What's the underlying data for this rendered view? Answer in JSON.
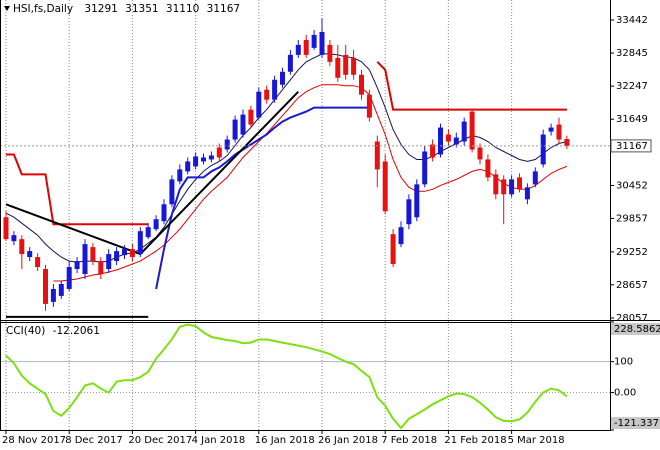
{
  "chart_data": {
    "type": "candlestick",
    "symbol": "HSI,fs,Daily",
    "categories": [
      "28 Nov 2017",
      null,
      null,
      null,
      null,
      null,
      null,
      null,
      "8 Dec 2017",
      null,
      null,
      null,
      null,
      null,
      null,
      null,
      "20 Dec 2017",
      null,
      null,
      null,
      null,
      null,
      null,
      null,
      "4 Jan 2018",
      null,
      null,
      null,
      null,
      null,
      null,
      null,
      "16 Jan 2018",
      null,
      null,
      null,
      null,
      null,
      null,
      null,
      "26 Jan 2018",
      null,
      null,
      null,
      null,
      null,
      null,
      null,
      "7 Feb 2018",
      null,
      null,
      null,
      null,
      null,
      null,
      null,
      "21 Feb 2018",
      null,
      null,
      null,
      null,
      null,
      null,
      null,
      "5 Mar 2018",
      null,
      null,
      null,
      null,
      null,
      null,
      null
    ],
    "ohlc": [
      [
        29878,
        29986,
        29446,
        29482
      ],
      [
        29446,
        29626,
        29374,
        29554
      ],
      [
        29482,
        29554,
        28942,
        29212
      ],
      [
        29158,
        29338,
        29086,
        29266
      ],
      [
        29158,
        29230,
        28906,
        28978
      ],
      [
        28942,
        29014,
        28186,
        28312
      ],
      [
        28348,
        28672,
        28258,
        28582
      ],
      [
        28456,
        28726,
        28402,
        28672
      ],
      [
        28582,
        29086,
        28546,
        28978
      ],
      [
        28942,
        29158,
        28870,
        29086
      ],
      [
        28852,
        29482,
        28762,
        29392
      ],
      [
        29338,
        29410,
        29014,
        29086
      ],
      [
        29086,
        29158,
        28762,
        28852
      ],
      [
        28942,
        29302,
        28870,
        29212
      ],
      [
        29086,
        29338,
        29014,
        29266
      ],
      [
        29194,
        29374,
        29122,
        29302
      ],
      [
        29302,
        29392,
        29086,
        29158
      ],
      [
        29212,
        29698,
        29158,
        29626
      ],
      [
        29518,
        29770,
        29482,
        29698
      ],
      [
        29662,
        29914,
        29626,
        29842
      ],
      [
        29806,
        30202,
        29752,
        30112
      ],
      [
        30112,
        30634,
        30058,
        30562
      ],
      [
        30526,
        30832,
        30472,
        30742
      ],
      [
        30706,
        30958,
        30652,
        30886
      ],
      [
        30796,
        31048,
        30742,
        30976
      ],
      [
        30886,
        31030,
        30832,
        30958
      ],
      [
        30922,
        31066,
        30868,
        30994
      ],
      [
        31138,
        31210,
        30886,
        30958
      ],
      [
        31102,
        31354,
        31048,
        31282
      ],
      [
        31282,
        31714,
        31228,
        31642
      ],
      [
        31372,
        31822,
        31318,
        31732
      ],
      [
        31822,
        31894,
        31498,
        31552
      ],
      [
        31678,
        32218,
        31642,
        32146
      ],
      [
        32182,
        32254,
        31930,
        32002
      ],
      [
        32002,
        32434,
        31948,
        32362
      ],
      [
        32272,
        32578,
        32218,
        32506
      ],
      [
        32506,
        32902,
        32452,
        32812
      ],
      [
        32812,
        33082,
        32758,
        32992
      ],
      [
        33082,
        33172,
        32758,
        32812
      ],
      [
        32938,
        33262,
        32902,
        33172
      ],
      [
        32812,
        33478,
        32758,
        33226
      ],
      [
        32992,
        33082,
        32614,
        32686
      ],
      [
        32758,
        32992,
        32326,
        32398
      ],
      [
        32812,
        32992,
        32362,
        32452
      ],
      [
        32758,
        32902,
        32362,
        32452
      ],
      [
        32452,
        32542,
        32002,
        32092
      ],
      [
        32092,
        32182,
        31606,
        31678
      ],
      [
        31246,
        31354,
        30418,
        30742
      ],
      [
        30886,
        31012,
        29932,
        29986
      ],
      [
        29572,
        29662,
        28978,
        29032
      ],
      [
        29392,
        29806,
        29338,
        29698
      ],
      [
        29752,
        30292,
        29662,
        30202
      ],
      [
        29878,
        30562,
        29806,
        30472
      ],
      [
        30472,
        31174,
        30418,
        31066
      ],
      [
        31192,
        31282,
        30886,
        30958
      ],
      [
        31012,
        31570,
        30958,
        31498
      ],
      [
        31372,
        31462,
        31174,
        31246
      ],
      [
        31192,
        31408,
        31138,
        31318
      ],
      [
        31246,
        31678,
        31174,
        31606
      ],
      [
        31786,
        31822,
        31048,
        31102
      ],
      [
        31138,
        31210,
        30832,
        30922
      ],
      [
        30922,
        31012,
        30526,
        30598
      ],
      [
        30652,
        30742,
        30202,
        30292
      ],
      [
        30562,
        30634,
        29752,
        30292
      ],
      [
        30292,
        30634,
        30238,
        30562
      ],
      [
        30598,
        30670,
        30328,
        30382
      ],
      [
        30202,
        30490,
        30112,
        30418
      ],
      [
        30472,
        30778,
        30418,
        30706
      ],
      [
        30832,
        31462,
        30778,
        31372
      ],
      [
        31426,
        31570,
        31354,
        31498
      ],
      [
        31552,
        31678,
        31192,
        31282
      ],
      [
        31291,
        31351,
        31110,
        31167
      ]
    ],
    "up_color": "#1717d6",
    "down_color": "#e81010",
    "overlays": [
      {
        "color": "#14145a",
        "values": [
          29950,
          29878,
          29770,
          29662,
          29554,
          29392,
          29266,
          29158,
          29086,
          29068,
          29086,
          29086,
          29068,
          29086,
          29158,
          29212,
          29230,
          29302,
          29410,
          29518,
          29698,
          29932,
          30166,
          30382,
          30562,
          30706,
          30814,
          30886,
          30994,
          31174,
          31354,
          31498,
          31678,
          31822,
          32002,
          32182,
          32362,
          32542,
          32686,
          32758,
          32830,
          32830,
          32812,
          32776,
          32758,
          32686,
          32542,
          32218,
          31858,
          31462,
          31192,
          31012,
          30922,
          30922,
          30976,
          31066,
          31138,
          31210,
          31282,
          31354,
          31318,
          31246,
          31138,
          31066,
          30994,
          30922,
          30886,
          30922,
          31030,
          31138,
          31210,
          31246
        ]
      },
      {
        "color": "#e00000",
        "values": [
          null,
          null,
          null,
          null,
          null,
          null,
          28726,
          28726,
          28744,
          28762,
          28798,
          28834,
          28852,
          28888,
          28924,
          28978,
          29032,
          29086,
          29176,
          29266,
          29374,
          29518,
          29662,
          29842,
          30022,
          30202,
          30346,
          30472,
          30598,
          30778,
          30958,
          31102,
          31246,
          31390,
          31552,
          31714,
          31876,
          32038,
          32146,
          32218,
          32272,
          32272,
          32272,
          32254,
          32254,
          32218,
          32092,
          31732,
          31372,
          30922,
          30598,
          30418,
          30346,
          30346,
          30382,
          30454,
          30508,
          30562,
          30634,
          30706,
          30742,
          30706,
          30598,
          30490,
          30418,
          30382,
          30382,
          30454,
          30562,
          30670,
          30742,
          30796
        ]
      },
      {
        "color": "#e00000",
        "values": [
          31012,
          31012,
          30652,
          30652,
          30652,
          30652,
          29752,
          29752,
          29752,
          29752,
          29752,
          29752,
          29752,
          29752,
          29752,
          29752,
          29752,
          29752,
          29752,
          null,
          null,
          null,
          null,
          null,
          null,
          null,
          null,
          null,
          null,
          null,
          null,
          null,
          null,
          null,
          null,
          null,
          null,
          null,
          null,
          null,
          null,
          null,
          null,
          null,
          null,
          null,
          null,
          32686,
          32542,
          31822,
          31822,
          31822,
          31822,
          31822,
          31822,
          31822,
          31822,
          31822,
          31822,
          31822,
          31822,
          31822,
          31822,
          31822,
          31822,
          31822,
          31822,
          31822,
          31822,
          31822,
          31822,
          31822
        ]
      },
      {
        "color": "#1a1ad0",
        "values": [
          null,
          null,
          null,
          null,
          null,
          null,
          null,
          null,
          null,
          null,
          null,
          null,
          null,
          null,
          null,
          null,
          null,
          null,
          null,
          28582,
          29302,
          29932,
          30382,
          30598,
          30598,
          30598,
          30706,
          30778,
          30886,
          31012,
          31102,
          31192,
          31282,
          31372,
          31498,
          31606,
          31678,
          31732,
          31786,
          31858,
          31858,
          31858,
          31858,
          31858,
          31858,
          31858,
          31858,
          null,
          null,
          null,
          null,
          null,
          null,
          null,
          null,
          null,
          null,
          null,
          null,
          null,
          null,
          null,
          null,
          null,
          null,
          null,
          null,
          null,
          null,
          null,
          null,
          null
        ]
      }
    ],
    "trendlines": [
      {
        "color": "#000000",
        "x": [
          0,
          17
        ],
        "y": [
          30112,
          29212
        ]
      },
      {
        "color": "#000000",
        "x": [
          17,
          37
        ],
        "y": [
          29212,
          32146
        ]
      },
      {
        "color": "#000000",
        "x": [
          0,
          18
        ],
        "y": [
          28078,
          28078
        ]
      }
    ],
    "ylim": [
      28021,
      33767
    ],
    "yticks": [
      33442,
      32845,
      32247,
      31649,
      30452,
      29857,
      29252,
      28657,
      28057
    ],
    "grid": true,
    "indicator": {
      "title": "CCI(40)",
      "color": "#7ee012",
      "values": [
        120,
        95,
        55,
        30,
        12,
        -5,
        -60,
        -75,
        -50,
        -15,
        23,
        30,
        13,
        0,
        35,
        40,
        40,
        50,
        67,
        110,
        140,
        173,
        213,
        220,
        215,
        195,
        180,
        175,
        170,
        167,
        160,
        162,
        172,
        172,
        167,
        162,
        157,
        152,
        147,
        140,
        133,
        125,
        112,
        100,
        92,
        70,
        50,
        -15,
        -43,
        -85,
        -115,
        -85,
        -70,
        -55,
        -38,
        -25,
        -12,
        -3,
        -5,
        -15,
        -33,
        -55,
        -80,
        -92,
        -93,
        -87,
        -65,
        -30,
        0,
        13,
        7,
        -12.2061
      ],
      "ylim": [
        -121.337,
        228.5862
      ],
      "yticks": [
        228.5862,
        100,
        {
          "value": 0,
          "label": "0.00"
        },
        -121.337
      ]
    }
  }
}
